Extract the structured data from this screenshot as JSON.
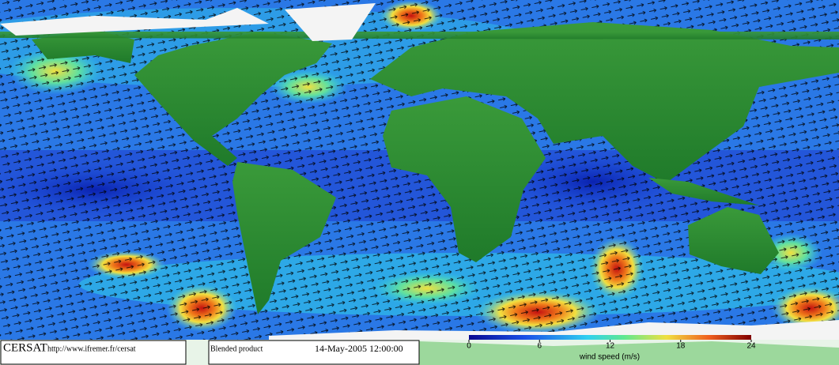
{
  "map": {
    "boxes": {
      "logo": "CERSAT",
      "url": "http://www.ifremer.fr/cersat",
      "product": "Blended product",
      "date": "14-May-2005 12:00:00"
    },
    "colorbar": {
      "lim": [
        0,
        24
      ],
      "ticks": [
        0,
        6,
        12,
        18,
        24
      ],
      "label": "wind speed (m/s)"
    }
  }
}
